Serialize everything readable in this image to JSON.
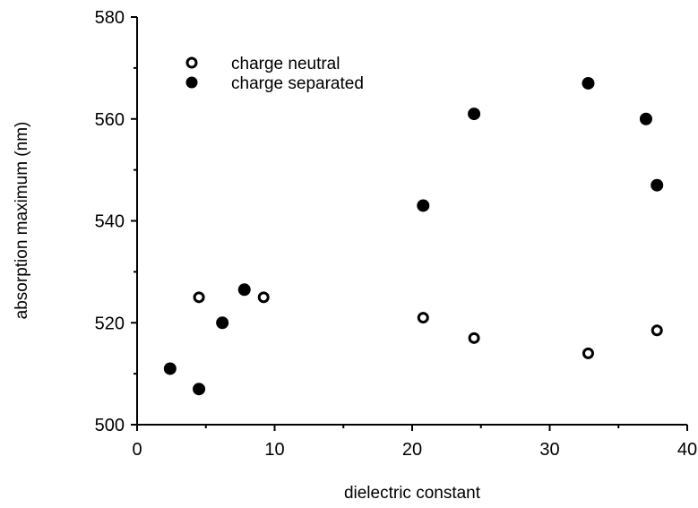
{
  "chart_data": {
    "type": "scatter",
    "title": "",
    "xlabel": "dielectric constant",
    "ylabel": "absorption maximum (nm)",
    "xlim": [
      0,
      40
    ],
    "ylim": [
      500,
      580
    ],
    "x_ticks": [
      "0",
      "10",
      "20",
      "30",
      "40"
    ],
    "y_ticks": [
      "500",
      "520",
      "540",
      "560",
      "580"
    ],
    "grid": false,
    "legend_position": "top-left",
    "series": [
      {
        "name": "charge neutral",
        "marker": "open-circle",
        "color": "#000000",
        "points": [
          {
            "x": 4.5,
            "y": 525
          },
          {
            "x": 9.2,
            "y": 525
          },
          {
            "x": 20.8,
            "y": 521
          },
          {
            "x": 24.5,
            "y": 517
          },
          {
            "x": 32.8,
            "y": 514
          },
          {
            "x": 37.8,
            "y": 518.5
          }
        ]
      },
      {
        "name": "charge separated",
        "marker": "filled-circle",
        "color": "#000000",
        "points": [
          {
            "x": 2.4,
            "y": 511
          },
          {
            "x": 4.5,
            "y": 507
          },
          {
            "x": 6.2,
            "y": 520
          },
          {
            "x": 7.8,
            "y": 526.5
          },
          {
            "x": 20.8,
            "y": 543
          },
          {
            "x": 24.5,
            "y": 561
          },
          {
            "x": 32.8,
            "y": 567
          },
          {
            "x": 37.0,
            "y": 560
          },
          {
            "x": 37.8,
            "y": 547
          }
        ]
      }
    ]
  }
}
